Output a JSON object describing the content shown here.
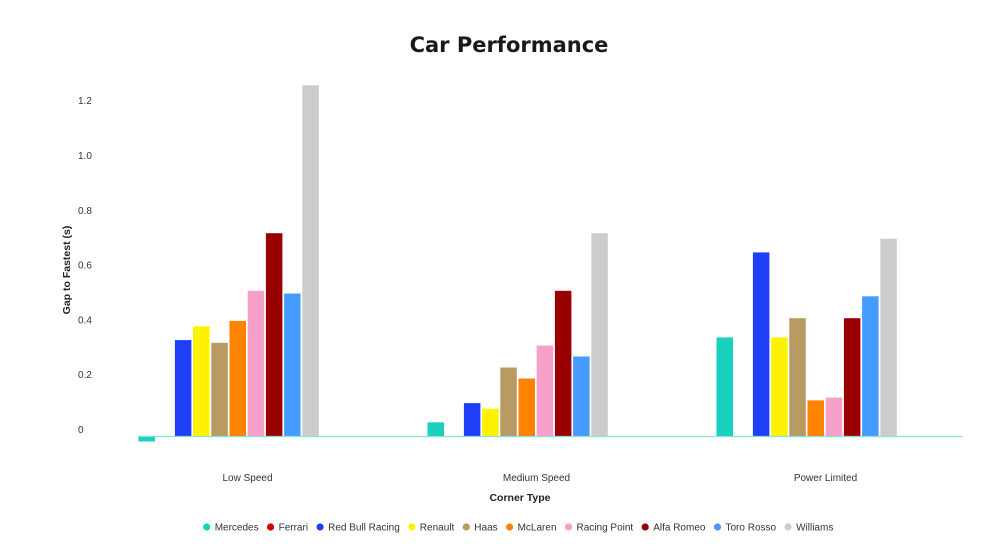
{
  "chart_data": {
    "type": "bar",
    "title": "Car Performance",
    "xlabel": "Corner Type",
    "ylabel": "Gap to Fastest (s)",
    "categories": [
      "Low Speed",
      "Medium Speed",
      "Power Limited"
    ],
    "ylim": [
      -0.05,
      1.3
    ],
    "yticks": [
      {
        "value": 0,
        "label": "0"
      },
      {
        "value": 0.2,
        "label": "0.2"
      },
      {
        "value": 0.4,
        "label": "0.4"
      },
      {
        "value": 0.6,
        "label": "0.6"
      },
      {
        "value": 0.8,
        "label": "0.8"
      },
      {
        "value": 1.0,
        "label": "1.0"
      },
      {
        "value": 1.2,
        "label": "1.2"
      }
    ],
    "grid": false,
    "legend_position": "bottom",
    "baseline_color": "#7fe3d6",
    "series": [
      {
        "name": "Mercedes",
        "color": "#1ad1c0",
        "values": [
          -0.02,
          0.05,
          0.36
        ]
      },
      {
        "name": "Ferrari",
        "color": "#d40000",
        "values": [
          0,
          0,
          0
        ]
      },
      {
        "name": "Red Bull Racing",
        "color": "#1e3ff5",
        "values": [
          0.35,
          0.12,
          0.67
        ]
      },
      {
        "name": "Renault",
        "color": "#fff200",
        "values": [
          0.4,
          0.1,
          0.36
        ]
      },
      {
        "name": "Haas",
        "color": "#b89a62",
        "values": [
          0.34,
          0.25,
          0.43
        ]
      },
      {
        "name": "McLaren",
        "color": "#ff8200",
        "values": [
          0.42,
          0.21,
          0.13
        ]
      },
      {
        "name": "Racing Point",
        "color": "#f59fc9",
        "values": [
          0.53,
          0.33,
          0.14
        ]
      },
      {
        "name": "Alfa Romeo",
        "color": "#990000",
        "values": [
          0.74,
          0.53,
          0.43
        ]
      },
      {
        "name": "Toro Rosso",
        "color": "#469bff",
        "values": [
          0.52,
          0.29,
          0.51
        ]
      },
      {
        "name": "Williams",
        "color": "#cccccc",
        "values": [
          1.28,
          0.74,
          0.72
        ]
      }
    ]
  }
}
